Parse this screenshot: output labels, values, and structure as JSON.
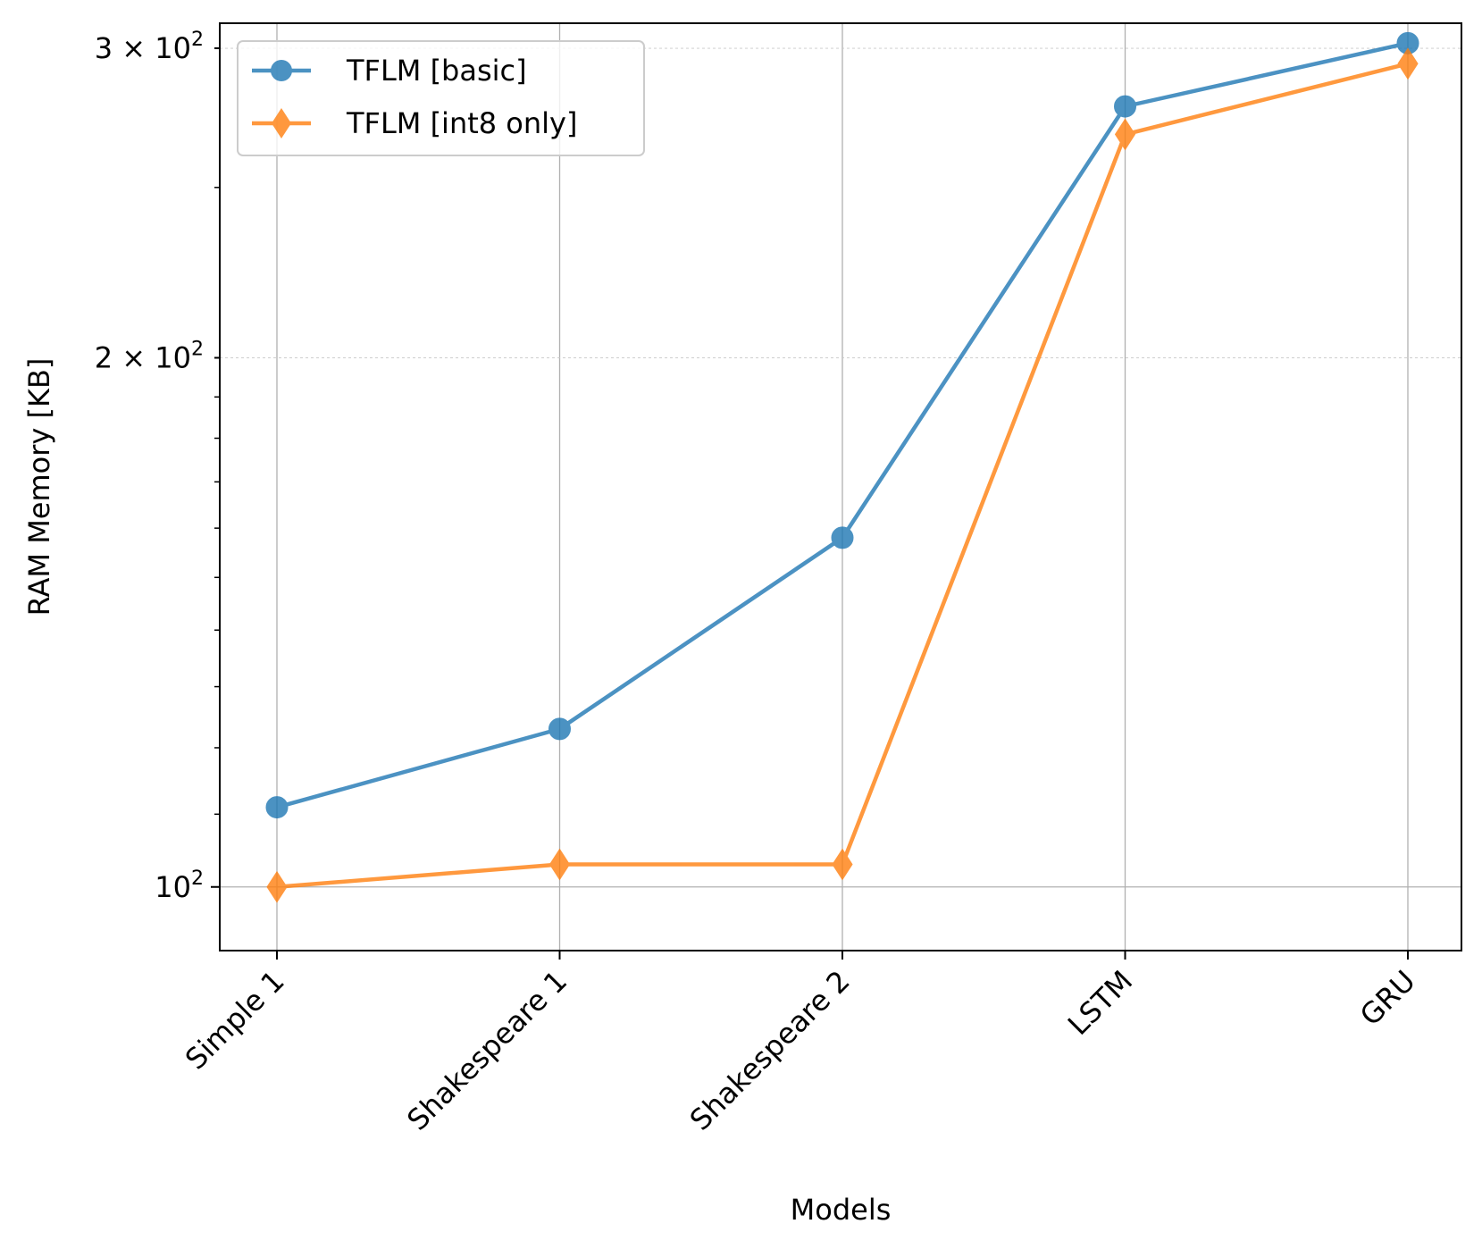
{
  "chart_data": {
    "type": "line",
    "xlabel": "Models",
    "ylabel": "RAM Memory [KB]",
    "categories": [
      "Simple 1",
      "Shakespeare 1",
      "Shakespeare 2",
      "LSTM",
      "GRU"
    ],
    "yscale": "log",
    "ylim": [
      92,
      310
    ],
    "yticks": [
      {
        "value": 100,
        "base": "10",
        "exp": "2",
        "coef": ""
      },
      {
        "value": 200,
        "base": "10",
        "exp": "2",
        "coef": "2"
      },
      {
        "value": 300,
        "base": "10",
        "exp": "2",
        "coef": "3"
      }
    ],
    "grid": true,
    "legend_position": "top-left",
    "series": [
      {
        "name": "TFLM [basic]",
        "marker": "circle",
        "color": "#1f77b4",
        "values": [
          111,
          123,
          158,
          278,
          302
        ]
      },
      {
        "name": "TFLM [int8 only]",
        "marker": "diamond",
        "color": "#ff7f0e",
        "values": [
          100,
          103,
          103,
          268,
          294
        ]
      }
    ]
  }
}
